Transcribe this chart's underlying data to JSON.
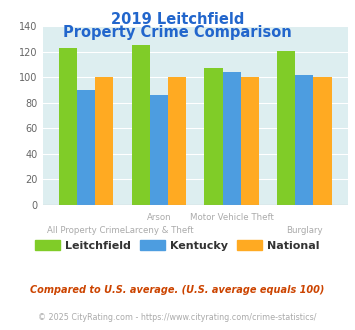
{
  "title_line1": "2019 Leitchfield",
  "title_line2": "Property Crime Comparison",
  "cat_labels_top": [
    "",
    "Arson",
    "Motor Vehicle Theft",
    ""
  ],
  "cat_labels_bottom": [
    "All Property Crime",
    "Larceny & Theft",
    "",
    "Burglary"
  ],
  "series": {
    "Leitchfield": [
      123,
      125,
      107,
      121
    ],
    "Kentucky": [
      90,
      86,
      104,
      102
    ],
    "National": [
      100,
      100,
      100,
      100
    ]
  },
  "colors": {
    "Leitchfield": "#80cc28",
    "Kentucky": "#4d9de0",
    "National": "#ffaa22"
  },
  "ylim": [
    0,
    140
  ],
  "yticks": [
    0,
    20,
    40,
    60,
    80,
    100,
    120,
    140
  ],
  "title_color": "#2266cc",
  "axis_bg_color": "#ddeef0",
  "fig_bg_color": "#ffffff",
  "label_color": "#aaaaaa",
  "footnote1": "Compared to U.S. average. (U.S. average equals 100)",
  "footnote2": "© 2025 CityRating.com - https://www.cityrating.com/crime-statistics/",
  "footnote1_color": "#cc4400",
  "footnote2_color": "#aaaaaa",
  "legend_text_color": "#333333"
}
